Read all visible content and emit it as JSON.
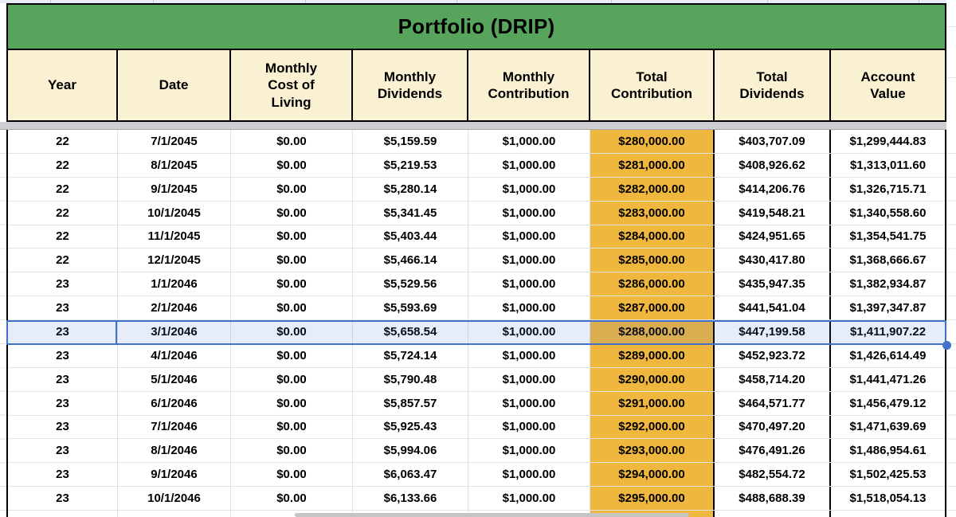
{
  "title": "Portfolio (DRIP)",
  "colors": {
    "green": "#57a45d",
    "cream": "#faf0d2",
    "orange": "#f0b73e",
    "selection-blue": "#4272c8"
  },
  "table": {
    "columns": [
      "Year",
      "Date",
      "Monthly\nCost of\nLiving",
      "Monthly\nDividends",
      "Monthly\nContribution",
      "Total\nContribution",
      "Total\nDividends",
      "Account\nValue"
    ],
    "rows": [
      [
        "22",
        "7/1/2045",
        "$0.00",
        "$5,159.59",
        "$1,000.00",
        "$280,000.00",
        "$403,707.09",
        "$1,299,444.83"
      ],
      [
        "22",
        "8/1/2045",
        "$0.00",
        "$5,219.53",
        "$1,000.00",
        "$281,000.00",
        "$408,926.62",
        "$1,313,011.60"
      ],
      [
        "22",
        "9/1/2045",
        "$0.00",
        "$5,280.14",
        "$1,000.00",
        "$282,000.00",
        "$414,206.76",
        "$1,326,715.71"
      ],
      [
        "22",
        "10/1/2045",
        "$0.00",
        "$5,341.45",
        "$1,000.00",
        "$283,000.00",
        "$419,548.21",
        "$1,340,558.60"
      ],
      [
        "22",
        "11/1/2045",
        "$0.00",
        "$5,403.44",
        "$1,000.00",
        "$284,000.00",
        "$424,951.65",
        "$1,354,541.75"
      ],
      [
        "22",
        "12/1/2045",
        "$0.00",
        "$5,466.14",
        "$1,000.00",
        "$285,000.00",
        "$430,417.80",
        "$1,368,666.67"
      ],
      [
        "23",
        "1/1/2046",
        "$0.00",
        "$5,529.56",
        "$1,000.00",
        "$286,000.00",
        "$435,947.35",
        "$1,382,934.87"
      ],
      [
        "23",
        "2/1/2046",
        "$0.00",
        "$5,593.69",
        "$1,000.00",
        "$287,000.00",
        "$441,541.04",
        "$1,397,347.87"
      ],
      [
        "23",
        "3/1/2046",
        "$0.00",
        "$5,658.54",
        "$1,000.00",
        "$288,000.00",
        "$447,199.58",
        "$1,411,907.22"
      ],
      [
        "23",
        "4/1/2046",
        "$0.00",
        "$5,724.14",
        "$1,000.00",
        "$289,000.00",
        "$452,923.72",
        "$1,426,614.49"
      ],
      [
        "23",
        "5/1/2046",
        "$0.00",
        "$5,790.48",
        "$1,000.00",
        "$290,000.00",
        "$458,714.20",
        "$1,441,471.26"
      ],
      [
        "23",
        "6/1/2046",
        "$0.00",
        "$5,857.57",
        "$1,000.00",
        "$291,000.00",
        "$464,571.77",
        "$1,456,479.12"
      ],
      [
        "23",
        "7/1/2046",
        "$0.00",
        "$5,925.43",
        "$1,000.00",
        "$292,000.00",
        "$470,497.20",
        "$1,471,639.69"
      ],
      [
        "23",
        "8/1/2046",
        "$0.00",
        "$5,994.06",
        "$1,000.00",
        "$293,000.00",
        "$476,491.26",
        "$1,486,954.61"
      ],
      [
        "23",
        "9/1/2046",
        "$0.00",
        "$6,063.47",
        "$1,000.00",
        "$294,000.00",
        "$482,554.72",
        "$1,502,425.53"
      ],
      [
        "23",
        "10/1/2046",
        "$0.00",
        "$6,133.66",
        "$1,000.00",
        "$295,000.00",
        "$488,688.39",
        "$1,518,054.13"
      ]
    ],
    "highlighted_column_index": 5,
    "selected_row_index": 8,
    "selected_row_date": "3/1/2046"
  }
}
